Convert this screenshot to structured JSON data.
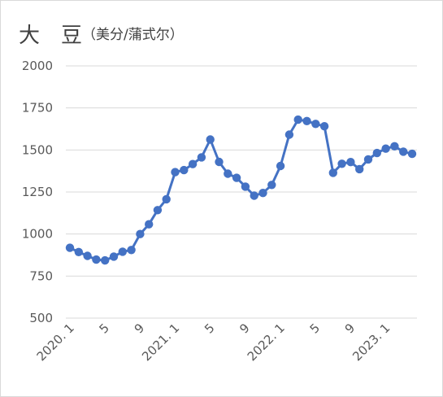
{
  "title": {
    "char1": "大",
    "char2": "豆",
    "unit": "（美分/蒲式尔）"
  },
  "chart_data": {
    "type": "line",
    "title": "大 豆（美分/蒲式尔）",
    "xlabel": "",
    "ylabel": "",
    "ylim": [
      500,
      2000
    ],
    "yticks": [
      500,
      750,
      1000,
      1250,
      1500,
      1750,
      2000
    ],
    "grid": true,
    "legend": "none",
    "color": "#4472c4",
    "x_tick_labels": [
      {
        "index": 0,
        "label": "2020. 1"
      },
      {
        "index": 4,
        "label": "5"
      },
      {
        "index": 8,
        "label": "9"
      },
      {
        "index": 12,
        "label": "2021. 1"
      },
      {
        "index": 16,
        "label": "5"
      },
      {
        "index": 20,
        "label": "9"
      },
      {
        "index": 24,
        "label": "2022. 1"
      },
      {
        "index": 28,
        "label": "5"
      },
      {
        "index": 32,
        "label": "9"
      },
      {
        "index": 36,
        "label": "2023. 1"
      }
    ],
    "x": [
      "2020-01",
      "2020-02",
      "2020-03",
      "2020-04",
      "2020-05",
      "2020-06",
      "2020-07",
      "2020-08",
      "2020-09",
      "2020-10",
      "2020-11",
      "2020-12",
      "2021-01",
      "2021-02",
      "2021-03",
      "2021-04",
      "2021-05",
      "2021-06",
      "2021-07",
      "2021-08",
      "2021-09",
      "2021-10",
      "2021-11",
      "2021-12",
      "2022-01",
      "2022-02",
      "2022-03",
      "2022-04",
      "2022-05",
      "2022-06",
      "2022-07",
      "2022-08",
      "2022-09",
      "2022-10",
      "2022-11",
      "2022-12",
      "2023-01",
      "2023-02",
      "2023-03",
      "2023-04"
    ],
    "series": [
      {
        "values": [
          918,
          893,
          870,
          848,
          843,
          866,
          895,
          905,
          1000,
          1058,
          1142,
          1207,
          1368,
          1380,
          1416,
          1456,
          1562,
          1429,
          1359,
          1334,
          1282,
          1228,
          1244,
          1292,
          1405,
          1591,
          1680,
          1672,
          1655,
          1641,
          1364,
          1418,
          1428,
          1386,
          1444,
          1482,
          1508,
          1522,
          1490,
          1477
        ]
      }
    ]
  }
}
